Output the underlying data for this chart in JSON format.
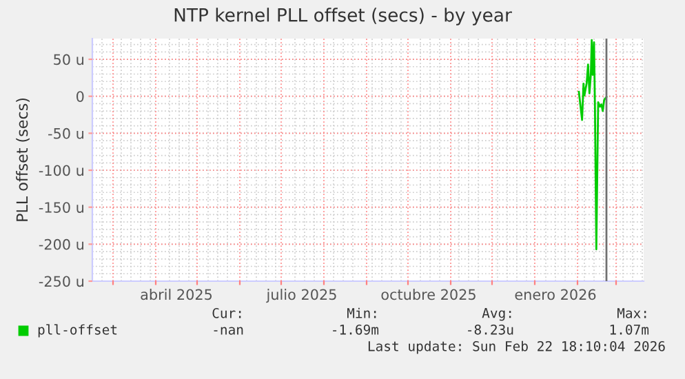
{
  "chart_data": {
    "type": "line",
    "title": "NTP kernel PLL offset (secs) - by year",
    "ylabel": "PLL offset (secs)",
    "series": [
      {
        "name": "pll-offset",
        "color": "#00cc00",
        "x": [
          "2026-02-02",
          "2026-02-04T08:00",
          "2026-02-05T08:00",
          "2026-02-06",
          "2026-02-07T16:00",
          "2026-02-08T16:00",
          "2026-02-09T16:00",
          "2026-02-10T16:00",
          "2026-02-11T08:00",
          "2026-02-12",
          "2026-02-13",
          "2026-02-13T16:00",
          "2026-02-14T16:00",
          "2026-02-16",
          "2026-02-17T08:00",
          "2026-02-18T08:00",
          "2026-02-19T08:00",
          "2026-02-20T08:00",
          "2026-02-22"
        ],
        "values": [
          6,
          -32,
          17,
          1,
          18,
          43,
          4,
          29,
          76,
          29,
          73,
          -14,
          -207,
          -8,
          -14,
          -11,
          -20,
          -5,
          -1
        ]
      }
    ],
    "xlim": [
      "2025-02-14",
      "2026-03-21"
    ],
    "xticks": [
      {
        "value": "2025-04-16",
        "label": "abril 2025"
      },
      {
        "value": "2025-07-16",
        "label": "julio 2025"
      },
      {
        "value": "2025-10-16",
        "label": "octubre 2025"
      },
      {
        "value": "2026-01-16",
        "label": "enero 2026"
      }
    ],
    "ylim": [
      -250,
      78
    ],
    "yticks": [
      {
        "value": -250,
        "label": "-250 u"
      },
      {
        "value": -200,
        "label": "-200 u"
      },
      {
        "value": -150,
        "label": "-150 u"
      },
      {
        "value": -100,
        "label": "-100 u"
      },
      {
        "value": -50,
        "label": "-50 u"
      },
      0,
      {
        "value": 50,
        "label": "50 u"
      }
    ],
    "grid": true,
    "legend": "bottom",
    "ref_lines": [
      {
        "axis": "x",
        "value": "2026-02-22",
        "color": "#707070"
      }
    ],
    "annotations": [
      "Cur:",
      "Min:",
      "Avg:",
      "Max:",
      "-nan",
      "-1.69m",
      "-8.23u",
      "1.07m",
      "Last update: Sun Feb 22 18:10:04 2026"
    ]
  }
}
